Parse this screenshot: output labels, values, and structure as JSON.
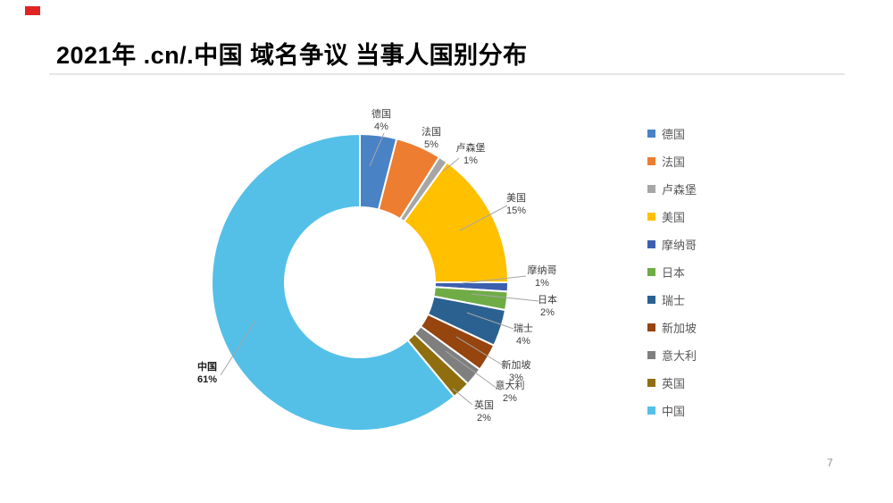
{
  "header": {
    "title": "2021年 .cn/.中国 域名争议 当事人国别分布",
    "accent_color": "#e02424"
  },
  "slide": {
    "page_number": "7"
  },
  "chart_data": {
    "type": "pie",
    "subtype": "donut",
    "title": "2021年 .cn/.中国 域名争议 当事人国别分布",
    "categories": [
      "德国",
      "法国",
      "卢森堡",
      "美国",
      "摩纳哥",
      "日本",
      "瑞士",
      "新加坡",
      "意大利",
      "英国",
      "中国"
    ],
    "values": [
      4,
      5,
      1,
      15,
      1,
      2,
      4,
      3,
      2,
      2,
      61
    ],
    "percent_labels": [
      "4%",
      "5%",
      "1%",
      "15%",
      "1%",
      "2%",
      "4%",
      "3%",
      "2%",
      "2%",
      "61%"
    ],
    "colors": [
      "#4a82c6",
      "#ed7d31",
      "#a6a6a6",
      "#ffc000",
      "#3d60ae",
      "#6fac46",
      "#2a6190",
      "#96450f",
      "#7f7f7f",
      "#8f6e10",
      "#54c0e8"
    ],
    "legend_position": "right",
    "donut_hole_ratio": 0.5,
    "start_angle_deg": 0,
    "grid": false,
    "emphasized_category": "中国",
    "leader_line_color": "#a6a6a6",
    "slice_border_color": "#ffffff"
  }
}
